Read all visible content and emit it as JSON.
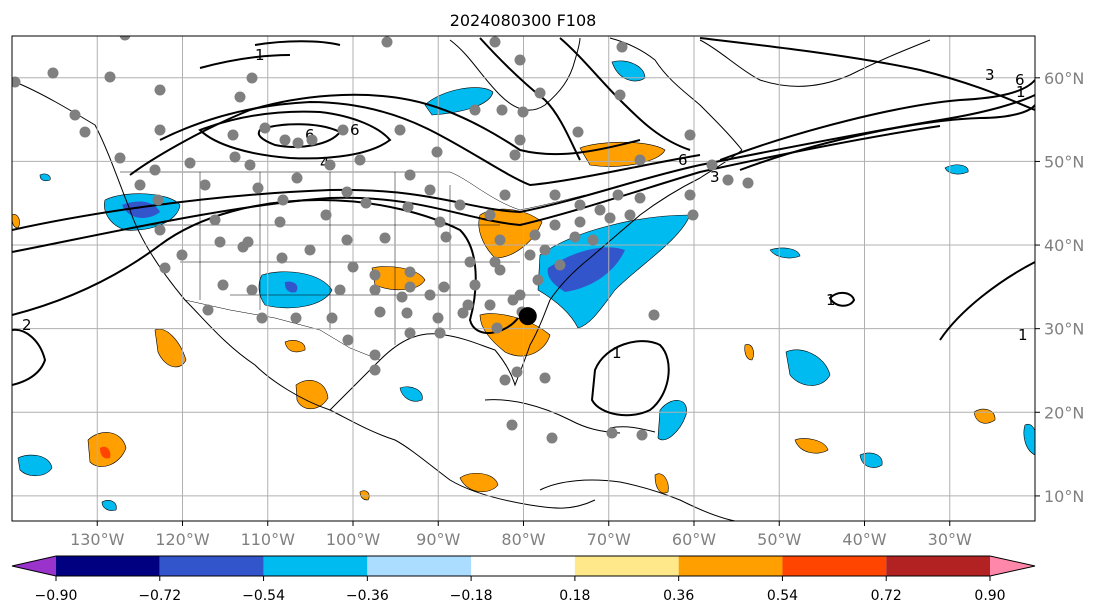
{
  "title": "2024080300 F108",
  "map": {
    "lon_range": [
      -140,
      -20
    ],
    "lat_range": [
      7,
      65
    ],
    "lon_ticks": [
      {
        "lon": -130,
        "label": "130°W"
      },
      {
        "lon": -120,
        "label": "120°W"
      },
      {
        "lon": -110,
        "label": "110°W"
      },
      {
        "lon": -100,
        "label": "100°W"
      },
      {
        "lon": -90,
        "label": "90°W"
      },
      {
        "lon": -80,
        "label": "80°W"
      },
      {
        "lon": -70,
        "label": "70°W"
      },
      {
        "lon": -60,
        "label": "60°W"
      },
      {
        "lon": -50,
        "label": "50°W"
      },
      {
        "lon": -40,
        "label": "40°W"
      },
      {
        "lon": -30,
        "label": "30°W"
      }
    ],
    "lat_ticks": [
      {
        "lat": 10,
        "label": "10°N"
      },
      {
        "lat": 20,
        "label": "20°N"
      },
      {
        "lat": 30,
        "label": "30°N"
      },
      {
        "lat": 40,
        "label": "40°N"
      },
      {
        "lat": 50,
        "label": "50°N"
      },
      {
        "lat": 60,
        "label": "60°N"
      }
    ],
    "grid": true,
    "contour_labels": [
      "1",
      "1",
      "1",
      "1",
      "1",
      "2",
      "3",
      "3",
      "4",
      "6",
      "6",
      "6",
      "6"
    ],
    "center_marker": {
      "lon": -79.5,
      "lat": 31.5
    }
  },
  "colorbar": {
    "labels": [
      "−0.90",
      "−0.72",
      "−0.54",
      "−0.36",
      "−0.18",
      "0.18",
      "0.36",
      "0.54",
      "0.72",
      "0.90"
    ],
    "colors": {
      "under": "#9933cc",
      "bins": [
        "#000080",
        "#3355cc",
        "#00bbf0",
        "#aaddff",
        "#ffffff",
        "#ffe88a",
        "#ff9f00",
        "#ff4500",
        "#b22222"
      ],
      "over": "#ff88aa"
    }
  },
  "colors": {
    "station_dot": "#808080",
    "contour": "#000000",
    "gridline": "#b0b0b0"
  }
}
